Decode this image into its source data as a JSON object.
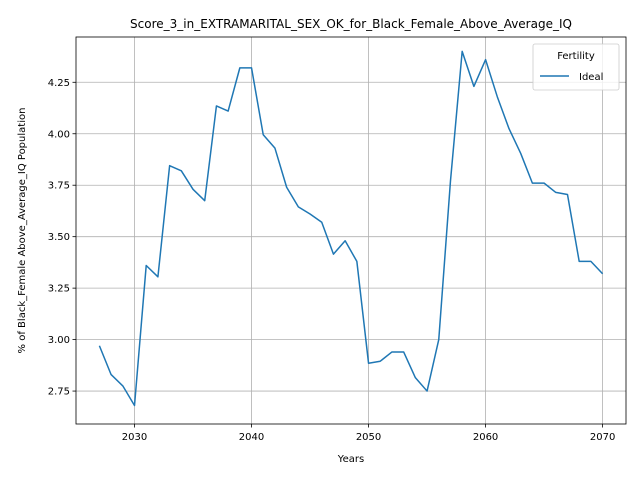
{
  "chart_data": {
    "type": "line",
    "title": "Score_3_in_EXTRAMARITAL_SEX_OK_for_Black_Female_Above_Average_IQ",
    "xlabel": "Years",
    "ylabel": "% of Black_Female Above_Average_IQ Population",
    "xlim": [
      2025,
      2072
    ],
    "ylim": [
      2.59,
      4.47
    ],
    "xticks": [
      2030,
      2040,
      2050,
      2060,
      2070
    ],
    "yticks": [
      2.75,
      3.0,
      3.25,
      3.5,
      3.75,
      4.0,
      4.25
    ],
    "ytick_labels": [
      "2.75",
      "3.00",
      "3.25",
      "3.50",
      "3.75",
      "4.00",
      "4.25"
    ],
    "grid": true,
    "legend": {
      "title": "Fertility",
      "placement": "top-right"
    },
    "series": [
      {
        "name": "Ideal",
        "color": "#1f77b4",
        "x": [
          2027,
          2028,
          2029,
          2030,
          2031,
          2032,
          2033,
          2034,
          2035,
          2036,
          2037,
          2038,
          2039,
          2040,
          2041,
          2042,
          2043,
          2044,
          2045,
          2046,
          2047,
          2048,
          2049,
          2050,
          2051,
          2052,
          2053,
          2054,
          2055,
          2056,
          2057,
          2058,
          2059,
          2060,
          2061,
          2062,
          2063,
          2064,
          2065,
          2066,
          2067,
          2068,
          2069,
          2070
        ],
        "y": [
          2.97,
          2.83,
          2.775,
          2.68,
          3.36,
          3.305,
          3.845,
          3.82,
          3.73,
          3.675,
          4.135,
          4.11,
          4.32,
          4.32,
          3.995,
          3.93,
          3.74,
          3.645,
          3.61,
          3.57,
          3.415,
          3.48,
          3.38,
          2.885,
          2.895,
          2.94,
          2.94,
          2.815,
          2.75,
          3.0,
          3.77,
          4.4,
          4.23,
          4.36,
          4.18,
          4.025,
          3.905,
          3.76,
          3.76,
          3.715,
          3.705,
          3.38,
          3.38,
          3.32
        ]
      }
    ]
  }
}
